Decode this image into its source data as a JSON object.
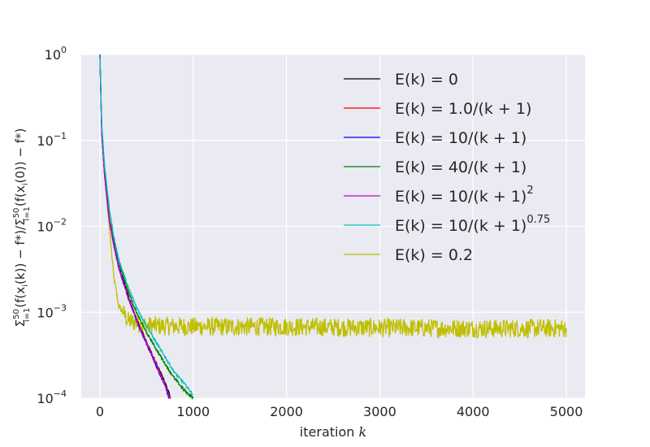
{
  "chart_data": {
    "type": "line",
    "y_scale": "log",
    "xlim": [
      -200,
      5200
    ],
    "ylim": [
      0.0001,
      1
    ],
    "grid": true,
    "legend_position": "top-right",
    "xlabel": "iteration k",
    "ylabel": "Σ_{i=1}^{50}(f(x_i(k)) − f*)/Σ_{i=1}^{50}(f(x_i(0)) − f*)",
    "x_ticks": [
      {
        "value": 0,
        "label": "0"
      },
      {
        "value": 1000,
        "label": "1000"
      },
      {
        "value": 2000,
        "label": "2000"
      },
      {
        "value": 3000,
        "label": "3000"
      },
      {
        "value": 4000,
        "label": "4000"
      },
      {
        "value": 5000,
        "label": "5000"
      }
    ],
    "y_ticks": [
      {
        "value": 1,
        "base": "10",
        "exp": "0"
      },
      {
        "value": 0.1,
        "base": "10",
        "exp": "−1"
      },
      {
        "value": 0.01,
        "base": "10",
        "exp": "−2"
      },
      {
        "value": 0.001,
        "base": "10",
        "exp": "−3"
      },
      {
        "value": 0.0001,
        "base": "10",
        "exp": "−4"
      }
    ],
    "series": [
      {
        "name": "E(k) = 0",
        "label_main": "E(k) = 0",
        "label_sup": "",
        "color": "#000000",
        "x": [
          0,
          20,
          50,
          100,
          150,
          200,
          300,
          400,
          500,
          600,
          700,
          760
        ],
        "y": [
          1.0,
          0.12,
          0.04,
          0.012,
          0.006,
          0.0035,
          0.0016,
          0.0008,
          0.00045,
          0.00026,
          0.00015,
          0.0001
        ]
      },
      {
        "name": "E(k) = 1.0/(k + 1)",
        "label_main": "E(k) = 1.0/(k + 1)",
        "label_sup": "",
        "color": "#ff0000",
        "x": [
          0,
          20,
          50,
          100,
          150,
          200,
          300,
          400,
          500,
          600,
          700,
          750
        ],
        "y": [
          1.0,
          0.12,
          0.04,
          0.012,
          0.006,
          0.0034,
          0.0015,
          0.00078,
          0.00044,
          0.00025,
          0.00014,
          0.0001
        ]
      },
      {
        "name": "E(k) = 10/(k + 1)",
        "label_main": "E(k) = 10/(k + 1)",
        "label_sup": "",
        "color": "#0000ff",
        "x": [
          0,
          20,
          50,
          100,
          150,
          200,
          300,
          400,
          500,
          600,
          700,
          740
        ],
        "y": [
          1.0,
          0.12,
          0.04,
          0.012,
          0.006,
          0.0034,
          0.0015,
          0.00077,
          0.00043,
          0.00024,
          0.00014,
          0.0001
        ]
      },
      {
        "name": "E(k) = 40/(k + 1)",
        "label_main": "E(k) = 40/(k + 1)",
        "label_sup": "",
        "color": "#008000",
        "x": [
          0,
          20,
          50,
          100,
          150,
          200,
          300,
          400,
          500,
          600,
          700,
          800,
          900,
          1000
        ],
        "y": [
          1.0,
          0.14,
          0.05,
          0.016,
          0.007,
          0.004,
          0.0018,
          0.00095,
          0.00058,
          0.00038,
          0.00025,
          0.00017,
          0.000125,
          0.0001
        ]
      },
      {
        "name": "E(k) = 10/(k + 1)^2",
        "label_main": "E(k) = 10/(k + 1)",
        "label_sup": "2",
        "color": "#bf00bf",
        "x": [
          0,
          20,
          50,
          100,
          150,
          200,
          300,
          400,
          500,
          600,
          700,
          750
        ],
        "y": [
          1.0,
          0.12,
          0.04,
          0.012,
          0.006,
          0.0034,
          0.0015,
          0.00078,
          0.00044,
          0.00025,
          0.00014,
          0.0001
        ]
      },
      {
        "name": "E(k) = 10/(k + 1)^0.75",
        "label_main": "E(k) = 10/(k + 1)",
        "label_sup": "0.75",
        "color": "#00bfbf",
        "x": [
          0,
          20,
          50,
          100,
          150,
          200,
          300,
          400,
          500,
          600,
          700,
          800,
          900,
          1000
        ],
        "y": [
          1.0,
          0.15,
          0.05,
          0.016,
          0.0075,
          0.0042,
          0.002,
          0.0011,
          0.0007,
          0.00045,
          0.0003,
          0.0002,
          0.00015,
          0.00011
        ]
      },
      {
        "name": "E(k) = 0.2",
        "label_main": "E(k) = 0.2",
        "label_sup": "",
        "color": "#bfbf00",
        "x": [
          0,
          20,
          50,
          100,
          150,
          200,
          300,
          500,
          1000,
          2000,
          3000,
          4000,
          5000
        ],
        "y": [
          1.0,
          0.13,
          0.04,
          0.01,
          0.0025,
          0.0012,
          0.0008,
          0.0007,
          0.00068,
          0.00068,
          0.00066,
          0.00065,
          0.00065
        ],
        "noise": "high-frequency oscillation between roughly 5e-4 and 1e-3 after k ≈ 300"
      }
    ]
  }
}
